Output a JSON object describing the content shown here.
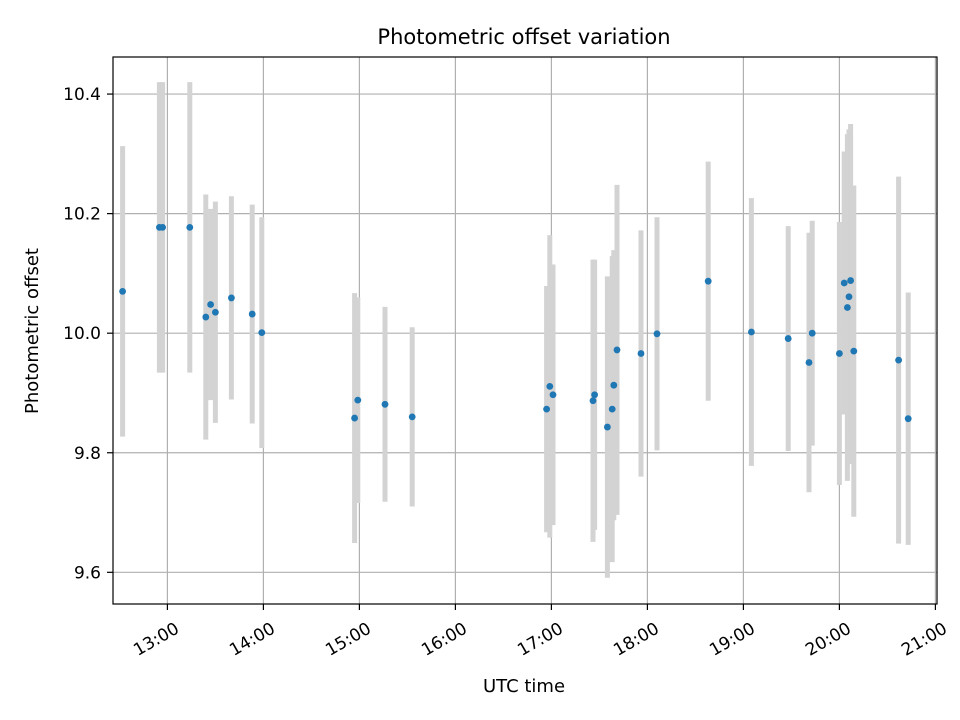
{
  "chart_data": {
    "type": "scatter",
    "title": "Photometric offset variation",
    "xlabel": "UTC time",
    "ylabel": "Photometric offset",
    "xlim": [
      "12:26",
      "21:01"
    ],
    "ylim": [
      9.547,
      10.462
    ],
    "x_ticks": [
      "13:00",
      "14:00",
      "15:00",
      "16:00",
      "17:00",
      "18:00",
      "19:00",
      "20:00",
      "21:00"
    ],
    "y_ticks": [
      "9.6",
      "9.8",
      "10.0",
      "10.2",
      "10.4"
    ],
    "grid": true,
    "colors": {
      "point": "#1f77b4",
      "errorbar": "#d3d3d3",
      "grid": "#b0b0b0"
    },
    "points": [
      {
        "x": "12:32",
        "y": 10.07,
        "err": 0.243
      },
      {
        "x": "12:55",
        "y": 10.177,
        "err": 0.243
      },
      {
        "x": "12:57",
        "y": 10.177,
        "err": 0.243
      },
      {
        "x": "13:14",
        "y": 10.177,
        "err": 0.243
      },
      {
        "x": "13:24",
        "y": 10.027,
        "err": 0.205
      },
      {
        "x": "13:27",
        "y": 10.048,
        "err": 0.16
      },
      {
        "x": "13:30",
        "y": 10.035,
        "err": 0.185
      },
      {
        "x": "13:40",
        "y": 10.059,
        "err": 0.17
      },
      {
        "x": "13:53",
        "y": 10.032,
        "err": 0.183
      },
      {
        "x": "13:59",
        "y": 10.001,
        "err": 0.193
      },
      {
        "x": "14:57",
        "y": 9.858,
        "err": 0.209
      },
      {
        "x": "14:59",
        "y": 9.888,
        "err": 0.172
      },
      {
        "x": "15:16",
        "y": 9.881,
        "err": 0.163
      },
      {
        "x": "15:33",
        "y": 9.86,
        "err": 0.15
      },
      {
        "x": "16:57",
        "y": 9.873,
        "err": 0.206
      },
      {
        "x": "16:59",
        "y": 9.911,
        "err": 0.253
      },
      {
        "x": "17:01",
        "y": 9.897,
        "err": 0.218
      },
      {
        "x": "17:26",
        "y": 9.887,
        "err": 0.236
      },
      {
        "x": "17:27",
        "y": 9.897,
        "err": 0.226
      },
      {
        "x": "17:35",
        "y": 9.843,
        "err": 0.252
      },
      {
        "x": "17:38",
        "y": 9.873,
        "err": 0.256
      },
      {
        "x": "17:39",
        "y": 9.913,
        "err": 0.226
      },
      {
        "x": "17:41",
        "y": 9.972,
        "err": 0.276
      },
      {
        "x": "17:56",
        "y": 9.966,
        "err": 0.206
      },
      {
        "x": "18:06",
        "y": 9.999,
        "err": 0.195
      },
      {
        "x": "18:38",
        "y": 10.087,
        "err": 0.2
      },
      {
        "x": "19:05",
        "y": 10.002,
        "err": 0.224
      },
      {
        "x": "19:28",
        "y": 9.991,
        "err": 0.188
      },
      {
        "x": "19:41",
        "y": 9.951,
        "err": 0.217
      },
      {
        "x": "19:43",
        "y": 10.0,
        "err": 0.188
      },
      {
        "x": "20:00",
        "y": 9.966,
        "err": 0.22
      },
      {
        "x": "20:03",
        "y": 10.084,
        "err": 0.22
      },
      {
        "x": "20:05",
        "y": 10.043,
        "err": 0.29
      },
      {
        "x": "20:06",
        "y": 10.061,
        "err": 0.28
      },
      {
        "x": "20:07",
        "y": 10.088,
        "err": 0.262
      },
      {
        "x": "20:09",
        "y": 9.97,
        "err": 0.277
      },
      {
        "x": "20:37",
        "y": 9.955,
        "err": 0.307
      },
      {
        "x": "20:43",
        "y": 9.857,
        "err": 0.211
      }
    ]
  }
}
